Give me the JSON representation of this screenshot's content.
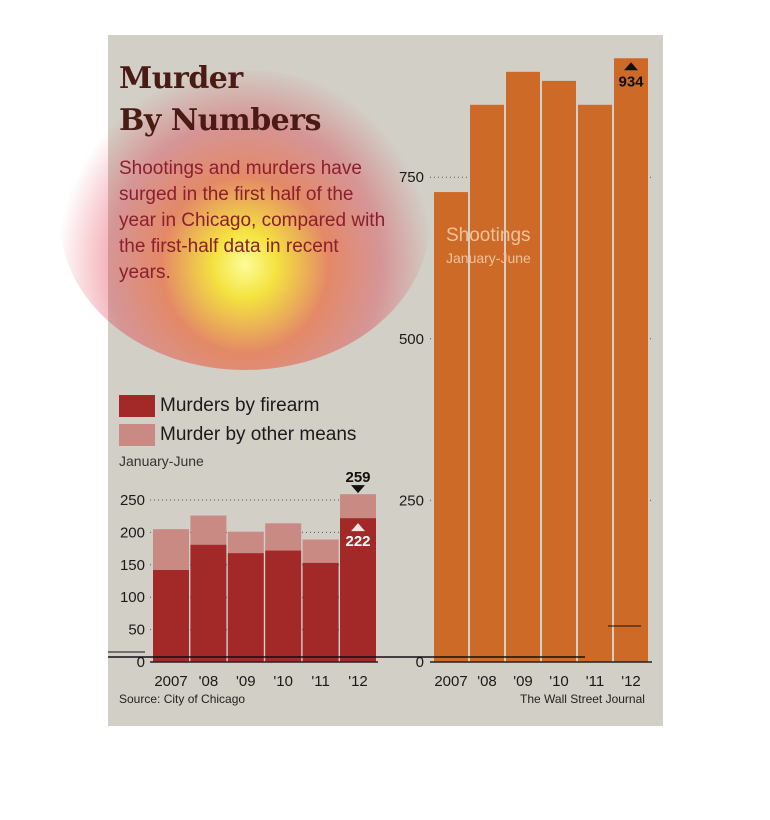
{
  "header": {
    "title_line1": "Murder",
    "title_line2": "By Numbers",
    "subtitle": "Shootings and murders have surged in the first half of the year in Chicago, compared with the first-half data in recent years."
  },
  "legend": {
    "firearm": "Murders by firearm",
    "other": "Murder by other means",
    "period": "January-June"
  },
  "shootings_labels": {
    "title": "Shootings",
    "period": "January-June"
  },
  "footer": {
    "source": "Source: City of Chicago",
    "credit": "The Wall Street Journal"
  },
  "colors": {
    "firearm": "#a32828",
    "other": "#c98a84",
    "shootings": "#cd6a27",
    "background": "#d2cfc6"
  },
  "chart_data": [
    {
      "type": "bar",
      "stacked": true,
      "categories": [
        "2007",
        "'08",
        "'09",
        "'10",
        "'11",
        "'12"
      ],
      "series": [
        {
          "name": "Murders by firearm",
          "values": [
            142,
            181,
            168,
            172,
            153,
            222
          ]
        },
        {
          "name": "Murder by other means",
          "values": [
            63,
            45,
            33,
            42,
            36,
            37
          ]
        }
      ],
      "totals": [
        205,
        226,
        201,
        214,
        189,
        259
      ],
      "yticks": [
        50,
        100,
        150,
        200,
        250
      ],
      "ylim": [
        0,
        270
      ],
      "grid": true,
      "annotations": [
        {
          "category": "'12",
          "value": 259,
          "label": "259"
        },
        {
          "category": "'12",
          "value": 222,
          "label": "222"
        }
      ]
    },
    {
      "type": "bar",
      "categories": [
        "2007",
        "'08",
        "'09",
        "'10",
        "'11",
        "'12"
      ],
      "series": [
        {
          "name": "Shootings",
          "values": [
            727,
            862,
            913,
            899,
            862,
            934
          ]
        }
      ],
      "yticks": [
        0,
        250,
        500,
        750
      ],
      "ylim": [
        0,
        934
      ],
      "grid": true,
      "annotations": [
        {
          "category": "'12",
          "value": 934,
          "label": "934"
        }
      ]
    }
  ]
}
